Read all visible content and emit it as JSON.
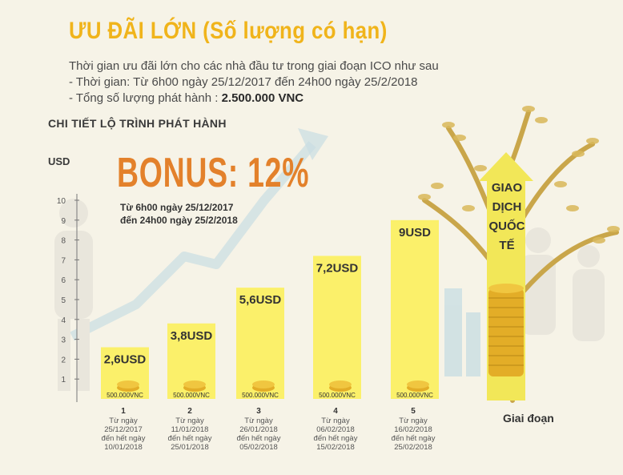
{
  "header": {
    "title": "ƯU ĐÃI LỚN (Số lượng có hạn)",
    "intro_line": "Thời gian ưu đãi lớn cho các nhà đầu tư trong giai đoạn ICO như sau",
    "time_line": "- Thời gian: Từ 6h00 ngày 25/12/2017 đến 24h00 ngày 25/2/2018",
    "supply_prefix": "- Tổng số lượng phát hành : ",
    "supply_value": "2.500.000 VNC"
  },
  "section_title": "CHI TIẾT LỘ TRÌNH PHÁT HÀNH",
  "bonus": {
    "label": "BONUS: 12%",
    "time_line_1": "Từ 6h00 ngày 25/12/2017",
    "time_line_2": "đến 24h00 ngày 25/2/2018"
  },
  "arrow": {
    "line_1": "GIAO",
    "line_2": "DỊCH",
    "line_3": "QUỐC",
    "line_4": "TẾ"
  },
  "colors": {
    "bar": "#fbf06a",
    "title": "#f0b41b",
    "bonus": "#e3812b",
    "arrow": "#f2e758",
    "coin": "#e6b52a"
  },
  "chart_data": {
    "type": "bar",
    "ylabel": "USD",
    "xlabel": "Giai đoạn",
    "ylim": [
      0,
      10
    ],
    "yticks": [
      "1",
      "2",
      "3",
      "4",
      "5",
      "6",
      "7",
      "8",
      "9",
      "10"
    ],
    "categories": [
      "1",
      "2",
      "3",
      "4",
      "5"
    ],
    "values": [
      2.6,
      3.8,
      5.6,
      7.2,
      9
    ],
    "value_labels": [
      "2,6USD",
      "3,8USD",
      "5,6USD",
      "7,2USD",
      "9USD"
    ],
    "quantity_labels": [
      "500.000VNC",
      "500.000VNC",
      "500.000VNC",
      "500.000VNC",
      "500.000VNC"
    ],
    "periods": [
      {
        "num": "1",
        "lines": [
          "Từ ngày",
          "25/12/2017",
          "đến hết ngày",
          "10/01/2018"
        ]
      },
      {
        "num": "2",
        "lines": [
          "Từ ngày",
          "11/01/2018",
          "đến hết ngày",
          "25/01/2018"
        ]
      },
      {
        "num": "3",
        "lines": [
          "Từ ngày",
          "26/01/2018",
          "đến hết ngày",
          "05/02/2018"
        ]
      },
      {
        "num": "4",
        "lines": [
          "Từ ngày",
          "06/02/2018",
          "đến hết ngày",
          "15/02/2018"
        ]
      },
      {
        "num": "5",
        "lines": [
          "Từ ngày",
          "16/02/2018",
          "đến hết ngày",
          "25/02/2018"
        ]
      }
    ],
    "grid": false,
    "legend": "none"
  }
}
